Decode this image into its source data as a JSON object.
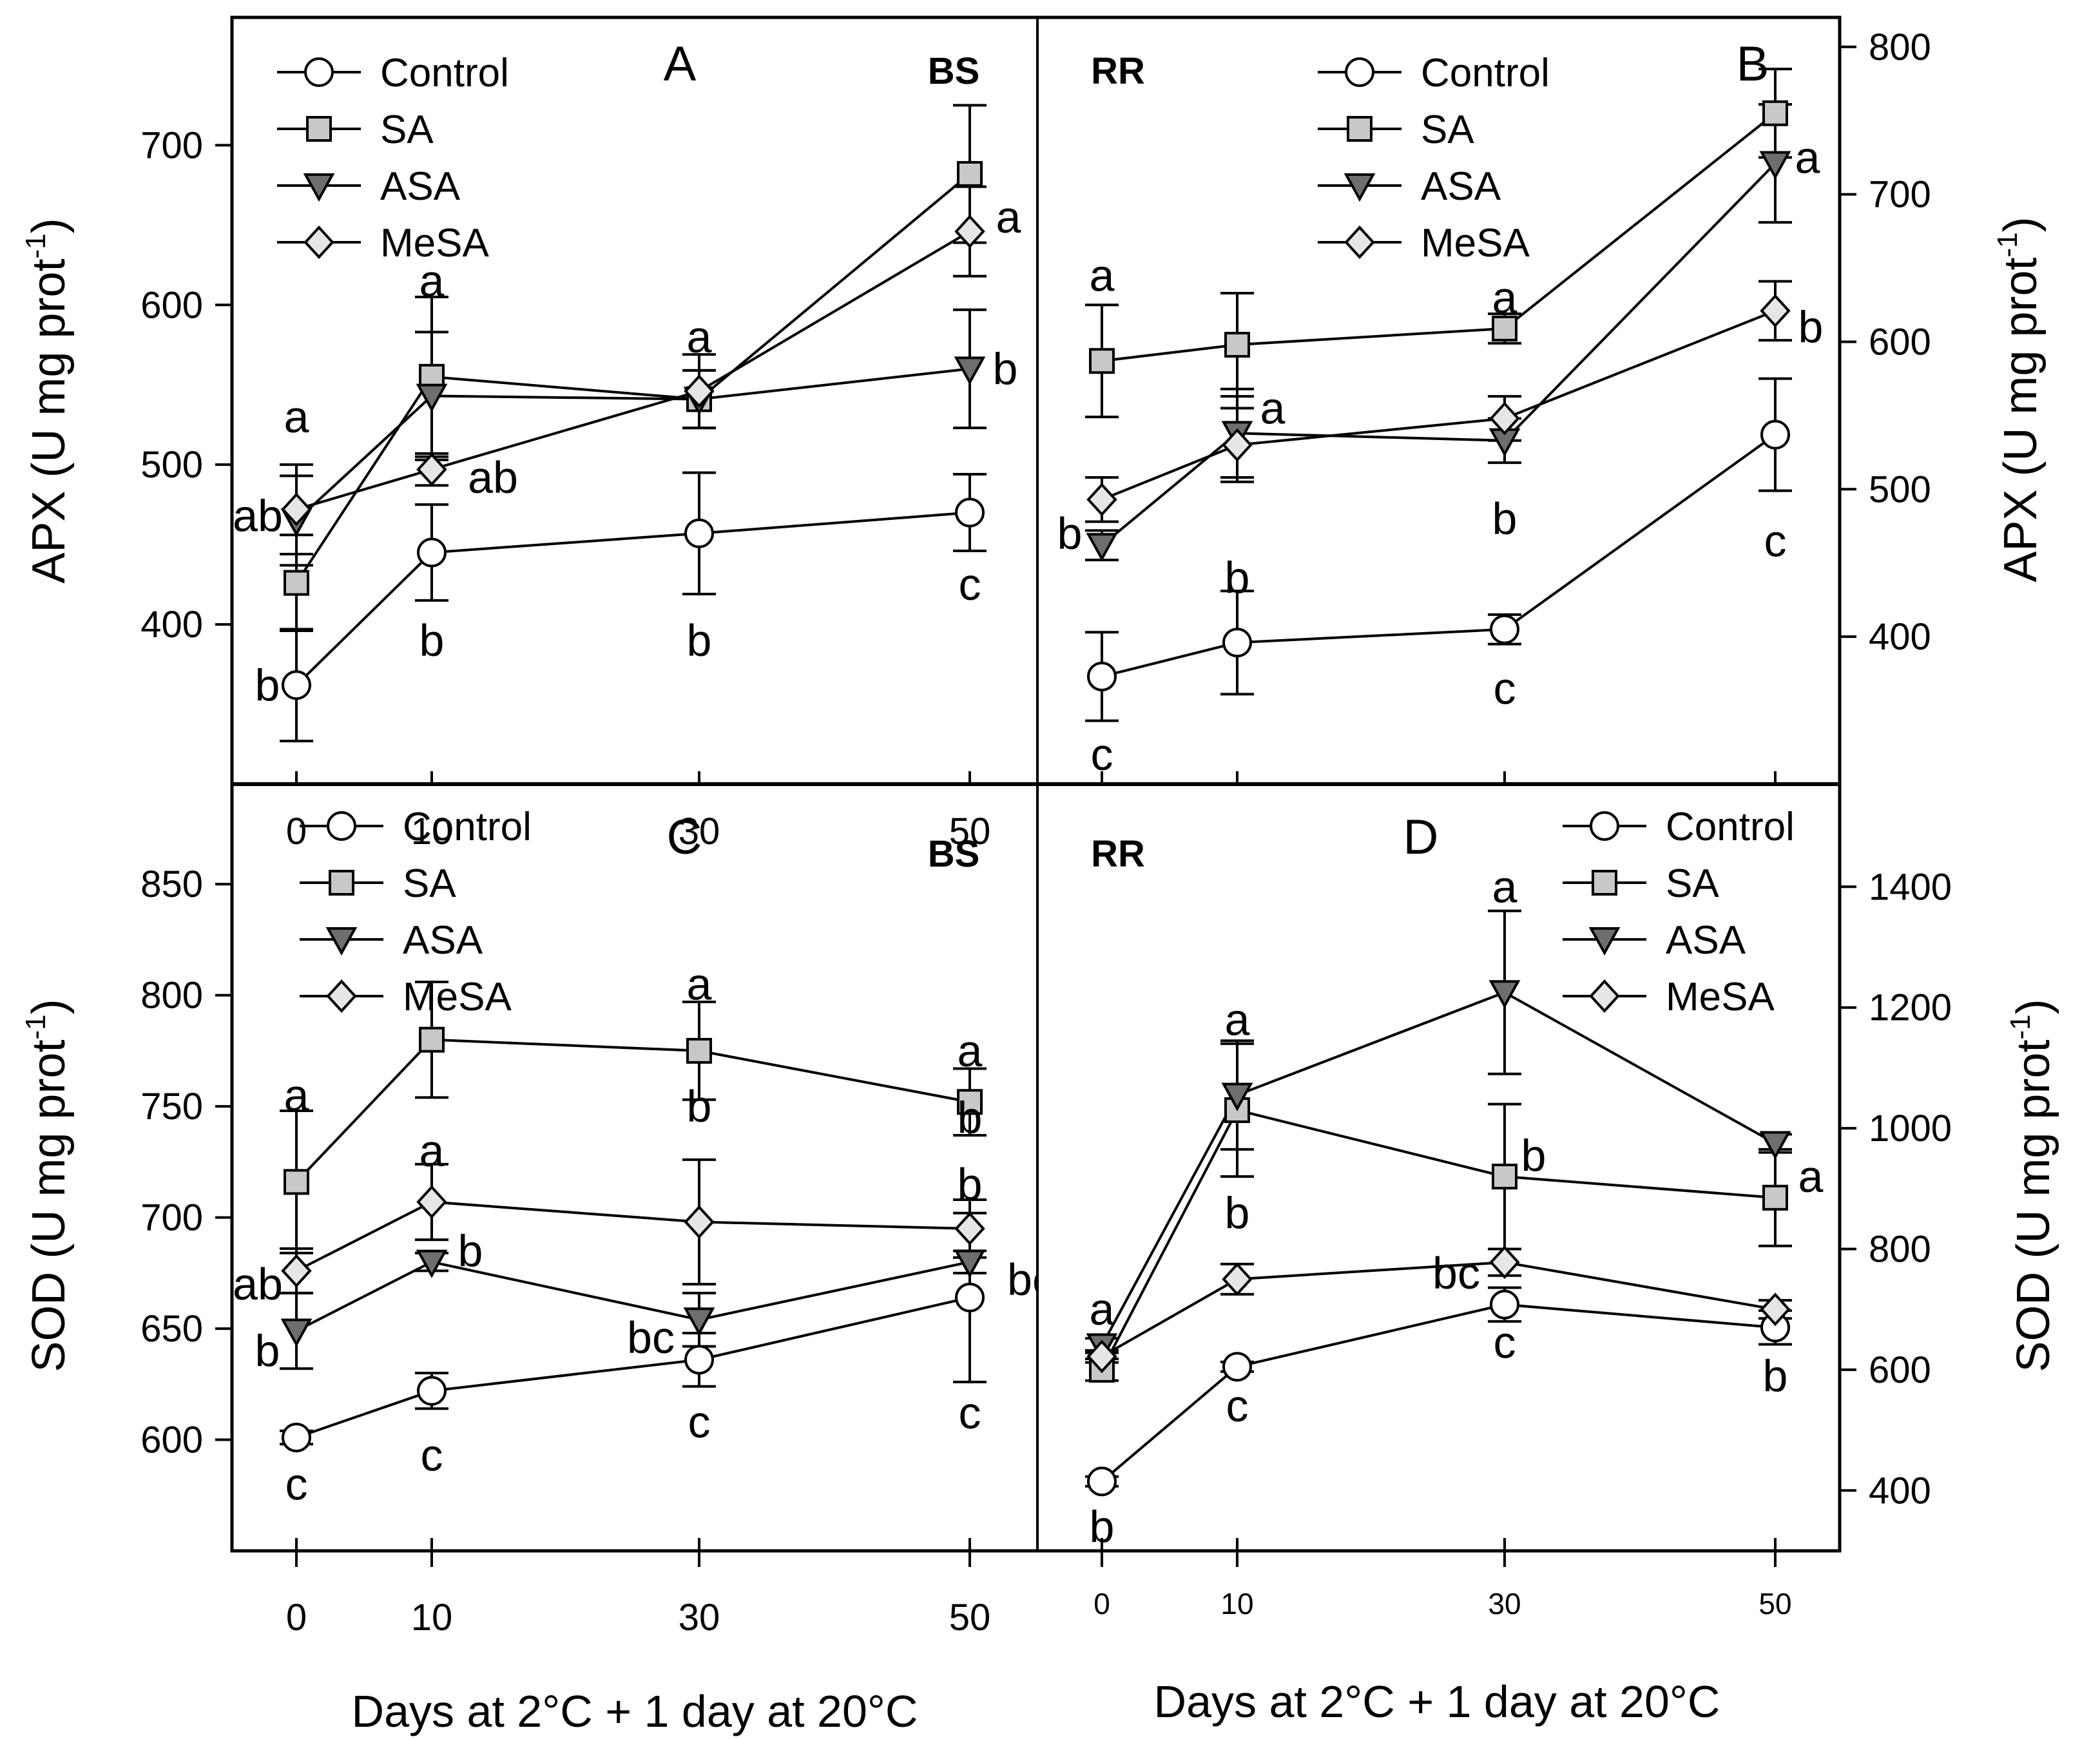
{
  "figure": {
    "xlabel_left": "Days at 2°C + 1 day at 20°C",
    "xlabel_right": "Days at 2°C + 1 day at 20°C",
    "colors": {
      "control": "#ffffff",
      "sa": "#c8c8c8",
      "asa": "#6e6e6e",
      "mesa": "#e6e6e6",
      "line": "#000000"
    }
  },
  "chart_data": [
    {
      "id": "A",
      "type": "line",
      "panel_label": "A",
      "cultivar": "BS",
      "ylabel": "APX (U mg prot",
      "ylabel_sup": "-1",
      "ylabel_end": ")",
      "y_axis_side": "left",
      "x": [
        0,
        10,
        30,
        50
      ],
      "x_ticks": [
        "0",
        "10",
        "30",
        "50"
      ],
      "ylim": [
        300,
        780
      ],
      "y_ticks": [
        "400",
        "500",
        "600",
        "700"
      ],
      "legend": [
        "Control",
        "SA",
        "ASA",
        "MeSA"
      ],
      "legend_position": "top-left",
      "series": [
        {
          "name": "Control",
          "values": [
            362,
            445,
            457,
            470
          ],
          "err": [
            35,
            30,
            38,
            24
          ]
        },
        {
          "name": "SA",
          "values": [
            426,
            555,
            541,
            682
          ],
          "err": [
            30,
            50,
            18,
            43
          ]
        },
        {
          "name": "ASA",
          "values": [
            465,
            543,
            541,
            560
          ],
          "err": [
            28,
            40,
            18,
            37
          ]
        },
        {
          "name": "MeSA",
          "values": [
            472,
            497,
            546,
            646
          ],
          "err": [
            28,
            10,
            23,
            28
          ]
        }
      ],
      "letters": [
        {
          "text": "a",
          "x": 0,
          "y": 530
        },
        {
          "text": "ab",
          "x": 0,
          "y": 468,
          "dx": -60
        },
        {
          "text": "b",
          "x": 0,
          "y": 362,
          "dx": -45
        },
        {
          "text": "a",
          "x": 10,
          "y": 615
        },
        {
          "text": "ab",
          "x": 10,
          "y": 492,
          "dx": 95
        },
        {
          "text": "b",
          "x": 10,
          "y": 390
        },
        {
          "text": "a",
          "x": 30,
          "y": 580
        },
        {
          "text": "b",
          "x": 30,
          "y": 390
        },
        {
          "text": "a",
          "x": 50,
          "y": 655,
          "dx": 60
        },
        {
          "text": "b",
          "x": 50,
          "y": 560,
          "dx": 55
        },
        {
          "text": "c",
          "x": 50,
          "y": 425
        }
      ]
    },
    {
      "id": "B",
      "type": "line",
      "panel_label": "B",
      "cultivar": "RR",
      "ylabel": "APX (U mg prot",
      "ylabel_sup": "-1",
      "ylabel_end": ")",
      "y_axis_side": "right",
      "x": [
        0,
        10,
        30,
        50
      ],
      "x_ticks": [
        "",
        "",
        "",
        ""
      ],
      "ylim": [
        300,
        820
      ],
      "y_ticks": [
        "400",
        "500",
        "600",
        "700",
        "800"
      ],
      "legend": [
        "Control",
        "SA",
        "ASA",
        "MeSA"
      ],
      "legend_position": "top-center",
      "series": [
        {
          "name": "Control",
          "values": [
            373,
            396,
            405,
            537
          ],
          "err": [
            30,
            35,
            10,
            38
          ]
        },
        {
          "name": "SA",
          "values": [
            587,
            598,
            609,
            755
          ],
          "err": [
            38,
            35,
            10,
            30
          ]
        },
        {
          "name": "ASA",
          "values": [
            462,
            538,
            533,
            721
          ],
          "err": [
            10,
            30,
            15,
            40
          ]
        },
        {
          "name": "MeSA",
          "values": [
            493,
            530,
            548,
            621
          ],
          "err": [
            15,
            25,
            15,
            20
          ]
        }
      ],
      "letters": [
        {
          "text": "a",
          "x": 0,
          "y": 645
        },
        {
          "text": "b",
          "x": 0,
          "y": 470,
          "dx": -50
        },
        {
          "text": "c",
          "x": 0,
          "y": 320
        },
        {
          "text": "a",
          "x": 10,
          "y": 555,
          "dx": 55
        },
        {
          "text": "b",
          "x": 10,
          "y": 440
        },
        {
          "text": "a",
          "x": 30,
          "y": 630
        },
        {
          "text": "b",
          "x": 30,
          "y": 480
        },
        {
          "text": "c",
          "x": 30,
          "y": 365
        },
        {
          "text": "a",
          "x": 50,
          "y": 725,
          "dx": 50
        },
        {
          "text": "b",
          "x": 50,
          "y": 610,
          "dx": 55
        },
        {
          "text": "c",
          "x": 50,
          "y": 465
        }
      ]
    },
    {
      "id": "C",
      "type": "line",
      "panel_label": "C",
      "cultivar": "BS",
      "ylabel": "SOD (U mg prot",
      "ylabel_sup": "-1",
      "ylabel_end": ")",
      "y_axis_side": "left",
      "x": [
        0,
        10,
        30,
        50
      ],
      "x_ticks": [
        "0",
        "10",
        "30",
        "50"
      ],
      "ylim": [
        550,
        895
      ],
      "y_ticks": [
        "600",
        "650",
        "700",
        "750",
        "800",
        "850"
      ],
      "legend": [
        "Control",
        "SA",
        "ASA",
        "MeSA"
      ],
      "legend_position": "top-center",
      "series": [
        {
          "name": "Control",
          "values": [
            601,
            622,
            636,
            664
          ],
          "err": [
            3,
            8,
            12,
            38
          ]
        },
        {
          "name": "SA",
          "values": [
            716,
            780,
            775,
            752
          ],
          "err": [
            32,
            26,
            22,
            15
          ]
        },
        {
          "name": "ASA",
          "values": [
            649,
            680,
            654,
            680
          ],
          "err": [
            17,
            4,
            12,
            5
          ]
        },
        {
          "name": "MeSA",
          "values": [
            676,
            707,
            698,
            695
          ],
          "err": [
            10,
            17,
            28,
            13
          ]
        }
      ],
      "letters": [
        {
          "text": "a",
          "x": 0,
          "y": 755
        },
        {
          "text": "ab",
          "x": 0,
          "y": 670,
          "dx": -60
        },
        {
          "text": "b",
          "x": 0,
          "y": 640,
          "dx": -45
        },
        {
          "text": "c",
          "x": 0,
          "y": 580
        },
        {
          "text": "a",
          "x": 10,
          "y": 730
        },
        {
          "text": "b",
          "x": 10,
          "y": 685,
          "dx": 60
        },
        {
          "text": "c",
          "x": 10,
          "y": 593
        },
        {
          "text": "a",
          "x": 30,
          "y": 805
        },
        {
          "text": "b",
          "x": 30,
          "y": 750
        },
        {
          "text": "bc",
          "x": 30,
          "y": 646,
          "dx": -75
        },
        {
          "text": "c",
          "x": 30,
          "y": 608
        },
        {
          "text": "a",
          "x": 50,
          "y": 775
        },
        {
          "text": "b",
          "x": 50,
          "y": 745
        },
        {
          "text": "b",
          "x": 50,
          "y": 715
        },
        {
          "text": "bc",
          "x": 50,
          "y": 672,
          "dx": 95
        },
        {
          "text": "c",
          "x": 50,
          "y": 612
        }
      ]
    },
    {
      "id": "D",
      "type": "line",
      "panel_label": "D",
      "cultivar": "RR",
      "ylabel": "SOD (U mg prot",
      "ylabel_sup": "-1",
      "ylabel_end": ")",
      "y_axis_side": "right",
      "x": [
        0,
        10,
        30,
        50
      ],
      "x_ticks": [
        "0",
        "10",
        "30",
        "50"
      ],
      "ylim": [
        300,
        1570
      ],
      "y_ticks": [
        "400",
        "600",
        "800",
        "1000",
        "1200",
        "1400"
      ],
      "legend": [
        "Control",
        "SA",
        "ASA",
        "MeSA"
      ],
      "legend_position": "top-right",
      "series": [
        {
          "name": "Control",
          "values": [
            415,
            605,
            708,
            670
          ],
          "err": [
            8,
            8,
            28,
            28
          ]
        },
        {
          "name": "SA",
          "values": [
            600,
            1030,
            920,
            885
          ],
          "err": [
            18,
            110,
            120,
            80
          ]
        },
        {
          "name": "ASA",
          "values": [
            640,
            1055,
            1225,
            975
          ],
          "err": [
            12,
            90,
            135,
            15
          ]
        },
        {
          "name": "MeSA",
          "values": [
            622,
            750,
            778,
            700
          ],
          "err": [
            10,
            25,
            22,
            15
          ]
        }
      ],
      "letters": [
        {
          "text": "a",
          "x": 0,
          "y": 700
        },
        {
          "text": "b",
          "x": 0,
          "y": 340
        },
        {
          "text": "a",
          "x": 10,
          "y": 1180
        },
        {
          "text": "b",
          "x": 10,
          "y": 860
        },
        {
          "text": "c",
          "x": 10,
          "y": 540
        },
        {
          "text": "a",
          "x": 30,
          "y": 1400
        },
        {
          "text": "b",
          "x": 30,
          "y": 955,
          "dx": 45
        },
        {
          "text": "bc",
          "x": 30,
          "y": 760,
          "dx": -75
        },
        {
          "text": "c",
          "x": 30,
          "y": 645
        },
        {
          "text": "a",
          "x": 50,
          "y": 920,
          "dx": 55
        },
        {
          "text": "b",
          "x": 50,
          "y": 590
        }
      ]
    }
  ]
}
